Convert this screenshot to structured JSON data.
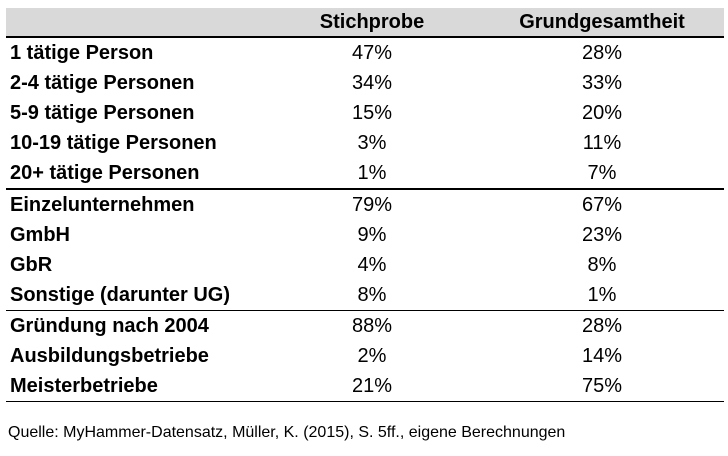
{
  "headers": {
    "label": "",
    "sample": "Stichprobe",
    "population": "Grundgesamtheit"
  },
  "groups": [
    [
      {
        "label": "1 tätige Person",
        "sample": "47%",
        "population": "28%"
      },
      {
        "label": "2-4 tätige Personen",
        "sample": "34%",
        "population": "33%"
      },
      {
        "label": "5-9 tätige Personen",
        "sample": "15%",
        "population": "20%"
      },
      {
        "label": "10-19 tätige Personen",
        "sample": "3%",
        "population": "11%"
      },
      {
        "label": "20+ tätige Personen",
        "sample": "1%",
        "population": "7%"
      }
    ],
    [
      {
        "label": "Einzelunternehmen",
        "sample": "79%",
        "population": "67%"
      },
      {
        "label": "GmbH",
        "sample": "9%",
        "population": "23%"
      },
      {
        "label": "GbR",
        "sample": "4%",
        "population": "8%"
      },
      {
        "label": "Sonstige (darunter UG)",
        "sample": "8%",
        "population": "1%"
      }
    ],
    [
      {
        "label": "Gründung nach 2004",
        "sample": "88%",
        "population": "28%"
      },
      {
        "label": "Ausbildungsbetriebe",
        "sample": "2%",
        "population": "14%"
      },
      {
        "label": "Meisterbetriebe",
        "sample": "21%",
        "population": "75%"
      }
    ]
  ],
  "source": "Quelle: MyHammer-Datensatz, Müller, K. (2015), S. 5ff., eigene Berechnungen"
}
